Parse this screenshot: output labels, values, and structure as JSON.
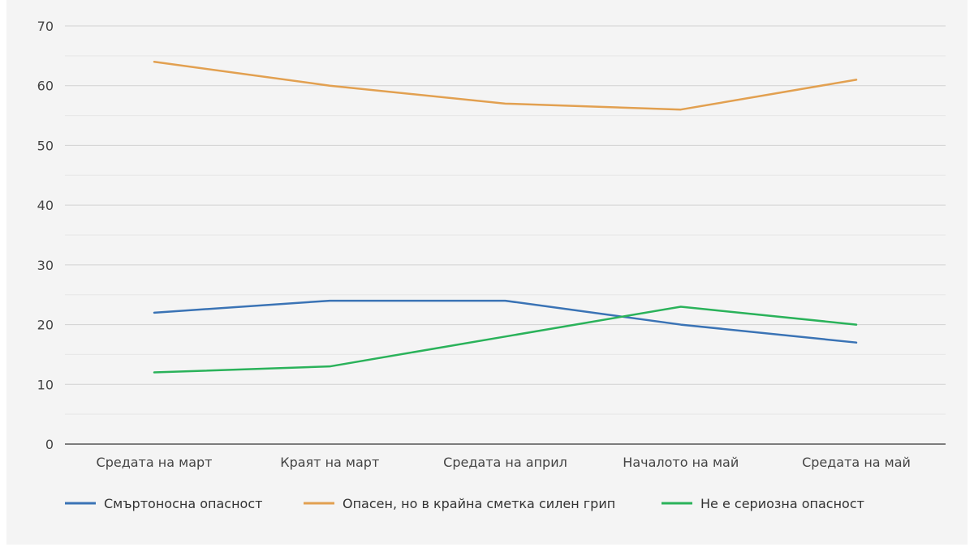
{
  "chart_data": {
    "type": "line",
    "categories": [
      "Средата на март",
      "Краят на март",
      "Средата на април",
      "Началото на май",
      "Средата на май"
    ],
    "series": [
      {
        "name": "Смъртоносна опасност",
        "values": [
          22,
          24,
          24,
          20,
          17
        ],
        "color": "#3a73b5"
      },
      {
        "name": "Опасен, но в крайна сметка силен грип",
        "values": [
          64,
          60,
          57,
          56,
          61
        ],
        "color": "#e2a050"
      },
      {
        "name": "Не е сериозна опасност",
        "values": [
          12,
          13,
          18,
          23,
          20
        ],
        "color": "#2ab25a"
      }
    ],
    "yticks": [
      0,
      10,
      20,
      30,
      40,
      50,
      60,
      70
    ],
    "ylim": [
      0,
      70
    ],
    "grid": true,
    "legend": "bottom"
  }
}
